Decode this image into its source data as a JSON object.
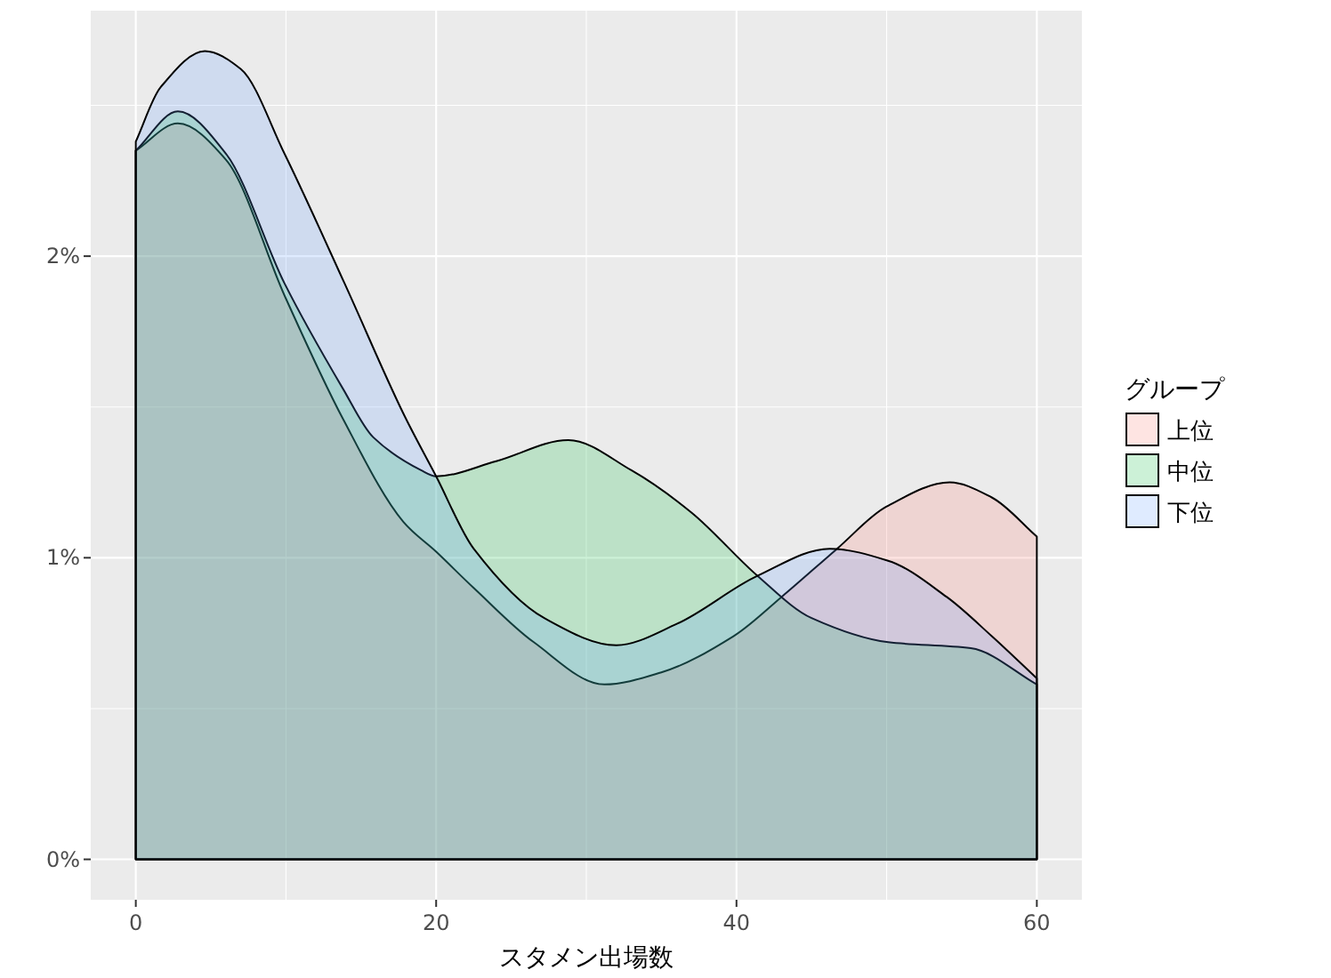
{
  "chart_data": {
    "type": "area",
    "xlabel": "スタメン出場数",
    "legend_title": "グループ",
    "xlim": [
      -3,
      63
    ],
    "ylim": [
      -0.134,
      2.814
    ],
    "xticks": [
      0,
      20,
      40,
      60
    ],
    "yticks": [
      {
        "value": 0,
        "label": "0%"
      },
      {
        "value": 1,
        "label": "1%"
      },
      {
        "value": 2,
        "label": "2%"
      }
    ],
    "grid": true,
    "legend": "right",
    "series": [
      {
        "name": "上位",
        "color": "#f8766d",
        "x": [
          0,
          2.8,
          6,
          9.9,
          13.8,
          17.8,
          20,
          22.5,
          26.5,
          31.2,
          35,
          39.8,
          43,
          46.7,
          50,
          54.2,
          57,
          60
        ],
        "values": [
          2.35,
          2.44,
          2.32,
          1.87,
          1.46,
          1.12,
          1.02,
          0.9,
          0.72,
          0.58,
          0.62,
          0.74,
          0.87,
          1.03,
          1.17,
          1.25,
          1.2,
          1.07
        ]
      },
      {
        "name": "中位",
        "color": "#00ba38",
        "x": [
          0,
          2.8,
          6,
          9.9,
          13.8,
          15.8,
          19,
          20,
          24,
          28.8,
          33,
          37,
          41.4,
          45,
          50.1,
          55.6,
          60
        ],
        "values": [
          2.35,
          2.48,
          2.34,
          1.91,
          1.56,
          1.4,
          1.29,
          1.27,
          1.32,
          1.39,
          1.29,
          1.15,
          0.94,
          0.8,
          0.72,
          0.7,
          0.58
        ]
      },
      {
        "name": "下位",
        "color": "#619cff",
        "x": [
          0,
          1.65,
          4.6,
          7,
          9.9,
          13.9,
          17.8,
          20,
          22.5,
          27.2,
          32,
          36,
          41.4,
          46.2,
          50.1,
          54,
          57,
          60
        ],
        "values": [
          2.38,
          2.56,
          2.68,
          2.62,
          2.34,
          1.91,
          1.48,
          1.27,
          1.03,
          0.8,
          0.71,
          0.78,
          0.94,
          1.03,
          0.99,
          0.87,
          0.74,
          0.6
        ]
      }
    ]
  }
}
